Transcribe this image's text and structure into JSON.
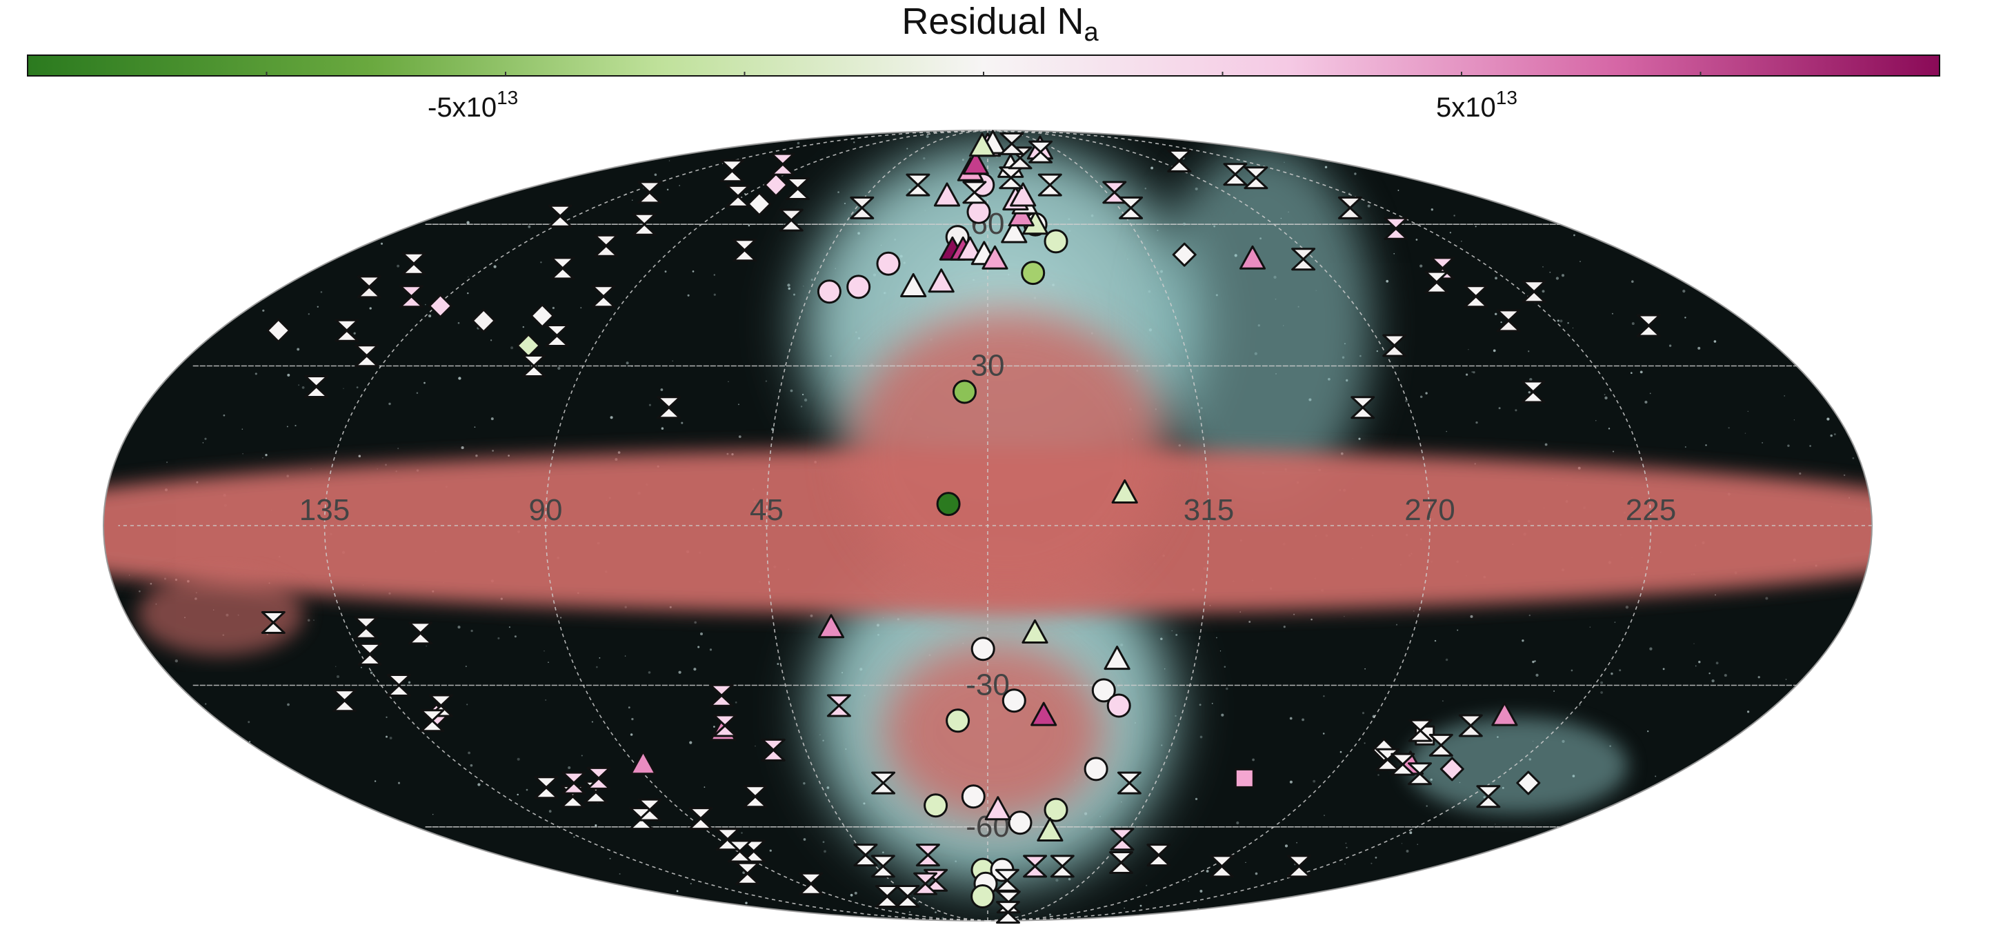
{
  "colorbar": {
    "title": "Residual N",
    "title_sub": "a",
    "tick_neg_base": "-5x10",
    "tick_neg_exp": "13",
    "tick_pos_base": "5x10",
    "tick_pos_exp": "13",
    "colors": {
      "green_dark": "#2b7a1f",
      "green_mid": "#8cc256",
      "green_light": "#dcefc4",
      "neutral": "#f7f5f5",
      "pink_light": "#f5c9e4",
      "pink_mid": "#d667a6",
      "magenta_dark": "#8a0a57"
    }
  },
  "map": {
    "projection": "Mollweide",
    "lon_labels": [
      "135",
      "90",
      "45",
      "315",
      "270",
      "225"
    ],
    "lat_labels": [
      "60",
      "30",
      "-30",
      "-60"
    ],
    "background_color": "#0b1212",
    "disk_color": "#c96a66",
    "bubble_color": "#a9d6d6"
  },
  "markers": [
    {
      "s": "circle",
      "lon": 8,
      "lat": 4,
      "c": "#2b7a1f"
    },
    {
      "s": "circle",
      "lon": 5,
      "lat": 25,
      "c": "#8cc256"
    },
    {
      "s": "circle",
      "lon": -12,
      "lat": 49,
      "c": "#a5d06d"
    },
    {
      "s": "circle",
      "lon": -20,
      "lat": 56,
      "c": "#dcefc4"
    },
    {
      "s": "circle",
      "lon": -15,
      "lat": 60,
      "c": "#f7f5f5"
    },
    {
      "s": "circle",
      "lon": 3,
      "lat": 63,
      "c": "#f9d6ec"
    },
    {
      "s": "circle",
      "lon": 2,
      "lat": 70,
      "c": "#f9d6ec"
    },
    {
      "s": "circle",
      "lon": 27,
      "lat": 51,
      "c": "#f9d6ec"
    },
    {
      "s": "circle",
      "lon": 40,
      "lat": 45,
      "c": "#f9d6ec"
    },
    {
      "s": "circle",
      "lon": 33,
      "lat": 46,
      "c": "#f9d6ec"
    },
    {
      "s": "circle",
      "lon": 9,
      "lat": 57,
      "c": "#f4f1f1"
    },
    {
      "s": "circle",
      "lon": 1,
      "lat": -23,
      "c": "#f7f5f5"
    },
    {
      "s": "circle",
      "lon": -6,
      "lat": -33,
      "c": "#f7f5f5"
    },
    {
      "s": "circle",
      "lon": -26,
      "lat": -31,
      "c": "#f7f5f5"
    },
    {
      "s": "circle",
      "lon": -30,
      "lat": -34,
      "c": "#f9d6ec"
    },
    {
      "s": "circle",
      "lon": 7,
      "lat": -37,
      "c": "#dcefc4"
    },
    {
      "s": "circle",
      "lon": -28,
      "lat": -47,
      "c": "#f7f5f5"
    },
    {
      "s": "circle",
      "lon": 4,
      "lat": -53,
      "c": "#f7f5f5"
    },
    {
      "s": "circle",
      "lon": 15,
      "lat": -55,
      "c": "#dcefc4"
    },
    {
      "s": "circle",
      "lon": -20,
      "lat": -56,
      "c": "#dcefc4"
    },
    {
      "s": "circle",
      "lon": -10,
      "lat": -59,
      "c": "#f7f5f5"
    },
    {
      "s": "circle",
      "lon": 2,
      "lat": -71,
      "c": "#dcefc4"
    },
    {
      "s": "circle",
      "lon": -6,
      "lat": -71,
      "c": "#f7f5f5"
    },
    {
      "s": "circle",
      "lon": 1,
      "lat": -75,
      "c": "#f7f5f5"
    },
    {
      "s": "circle",
      "lon": 3,
      "lat": -79,
      "c": "#dcefc4"
    },
    {
      "s": "triangle",
      "lon": -28,
      "lat": 6,
      "c": "#dcefc4"
    },
    {
      "s": "triangle",
      "lon": 19,
      "lat": 46,
      "c": "#f7f5f5"
    },
    {
      "s": "triangle",
      "lon": 12,
      "lat": 47,
      "c": "#f9d6ec"
    },
    {
      "s": "triangle",
      "lon": 10,
      "lat": 54,
      "c": "#8a0a57"
    },
    {
      "s": "triangle",
      "lon": 7,
      "lat": 54,
      "c": "#c43d8b"
    },
    {
      "s": "triangle",
      "lon": 5,
      "lat": 54,
      "c": "#f9d6ec"
    },
    {
      "s": "triangle",
      "lon": 1,
      "lat": 53,
      "c": "#f7f5f5"
    },
    {
      "s": "triangle",
      "lon": -2,
      "lat": 52,
      "c": "#f4a6d1"
    },
    {
      "s": "triangle",
      "lon": -8,
      "lat": 58,
      "c": "#f7f5f5"
    },
    {
      "s": "triangle",
      "lon": -15,
      "lat": 60,
      "c": "#dcefc4"
    },
    {
      "s": "triangle",
      "lon": -11,
      "lat": 62,
      "c": "#e98cc0"
    },
    {
      "s": "triangle",
      "lon": -13,
      "lat": 65,
      "c": "#f7f5f5"
    },
    {
      "s": "triangle",
      "lon": -10,
      "lat": 66,
      "c": "#f9d6ec"
    },
    {
      "s": "triangle",
      "lon": 8,
      "lat": 74,
      "c": "#f4a6d1"
    },
    {
      "s": "triangle",
      "lon": 6,
      "lat": 76,
      "c": "#c43d8b"
    },
    {
      "s": "triangle",
      "lon": 15,
      "lat": 67,
      "c": "#f9d6ec"
    },
    {
      "s": "triangle",
      "lon": -11,
      "lat": 75,
      "c": "#f7f5f5"
    },
    {
      "s": "triangle",
      "lon": 0,
      "lat": 82,
      "c": "#f9d6ec"
    },
    {
      "s": "triangle",
      "lon": -4,
      "lat": 83,
      "c": "#f7f5f5"
    },
    {
      "s": "triangle",
      "lon": 4,
      "lat": 82,
      "c": "#dcefc4"
    },
    {
      "s": "triangle",
      "lon": -35,
      "lat": 81,
      "c": "#f9d6ec"
    },
    {
      "s": "triangle",
      "lon": -73,
      "lat": 52,
      "c": "#e98cc0"
    },
    {
      "s": "triangle",
      "lon": -13,
      "lat": 67,
      "c": "#f9d6ec"
    },
    {
      "s": "triangle",
      "lon": 33,
      "lat": -19,
      "c": "#e98cc0"
    },
    {
      "s": "triangle",
      "lon": -10,
      "lat": -20,
      "c": "#dcefc4"
    },
    {
      "s": "triangle",
      "lon": -28,
      "lat": -25,
      "c": "#f7f5f5"
    },
    {
      "s": "triangle",
      "lon": -13,
      "lat": -36,
      "c": "#c43d8b"
    },
    {
      "s": "triangle",
      "lon": -3,
      "lat": -56,
      "c": "#f9d6ec"
    },
    {
      "s": "triangle",
      "lon": -20,
      "lat": -61,
      "c": "#dcefc4"
    },
    {
      "s": "triangle",
      "lon": 88,
      "lat": -46,
      "c": "#e98cc0"
    },
    {
      "s": "triangle",
      "lon": 63,
      "lat": -39,
      "c": "#e98cc0"
    },
    {
      "s": "triangle",
      "lon": -108,
      "lat": -46,
      "c": "#e98cc0"
    },
    {
      "s": "triangle",
      "lon": -120,
      "lat": -36,
      "c": "#e98cc0"
    },
    {
      "s": "diamond",
      "lon": 134,
      "lat": 42,
      "c": "#f9d6ec"
    },
    {
      "s": "diamond",
      "lon": 107,
      "lat": 40,
      "c": "#f7f5f5"
    },
    {
      "s": "diamond",
      "lon": 120,
      "lat": 39,
      "c": "#f4f1f1"
    },
    {
      "s": "diamond",
      "lon": 166,
      "lat": 37,
      "c": "#f7f5f5"
    },
    {
      "s": "diamond",
      "lon": 105,
      "lat": 34,
      "c": "#dcefc4"
    },
    {
      "s": "diamond",
      "lon": 85,
      "lat": 70,
      "c": "#f9d6ec"
    },
    {
      "s": "diamond",
      "lon": 80,
      "lat": 65,
      "c": "#f7f5f5"
    },
    {
      "s": "diamond",
      "lon": -55,
      "lat": 53,
      "c": "#f7f5f5"
    },
    {
      "s": "diamond",
      "lon": 128,
      "lat": -36,
      "c": "#f9d6ec"
    },
    {
      "s": "diamond",
      "lon": -98,
      "lat": -43,
      "c": "#f7f5f5"
    },
    {
      "s": "diamond",
      "lon": -120,
      "lat": -47,
      "c": "#f9d6ec"
    },
    {
      "s": "diamond",
      "lon": -145,
      "lat": -50,
      "c": "#f7f5f5"
    },
    {
      "s": "square",
      "lon": -68,
      "lat": -49,
      "c": "#f4a6d1"
    },
    {
      "s": "square",
      "lon": -105,
      "lat": -40,
      "c": "#f7f5f5"
    },
    {
      "s": "hourglass",
      "lon": 140,
      "lat": 62,
      "c": "#f7f5f5"
    },
    {
      "s": "hourglass",
      "lon": 128,
      "lat": 68,
      "c": "#f4f1f1"
    },
    {
      "s": "hourglass",
      "lon": 118,
      "lat": 74,
      "c": "#f7f5f5"
    },
    {
      "s": "hourglass",
      "lon": 103,
      "lat": 76,
      "c": "#f9d6ec"
    },
    {
      "s": "hourglass",
      "lon": 92,
      "lat": 67,
      "c": "#f4f1f1"
    },
    {
      "s": "hourglass",
      "lon": 108,
      "lat": 60,
      "c": "#f7f5f5"
    },
    {
      "s": "hourglass",
      "lon": 110,
      "lat": 55,
      "c": "#f4f1f1"
    },
    {
      "s": "hourglass",
      "lon": 114,
      "lat": 50,
      "c": "#f7f5f5"
    },
    {
      "s": "hourglass",
      "lon": 156,
      "lat": 51,
      "c": "#f7f5f5"
    },
    {
      "s": "hourglass",
      "lon": 158,
      "lat": 46,
      "c": "#f4f1f1"
    },
    {
      "s": "hourglass",
      "lon": 144,
      "lat": 44,
      "c": "#f9d6ec"
    },
    {
      "s": "hourglass",
      "lon": 150,
      "lat": 37,
      "c": "#f7f5f5"
    },
    {
      "s": "hourglass",
      "lon": 140,
      "lat": 32,
      "c": "#f7f5f5"
    },
    {
      "s": "hourglass",
      "lon": 100,
      "lat": 36,
      "c": "#f7f5f5"
    },
    {
      "s": "hourglass",
      "lon": 101,
      "lat": 30,
      "c": "#f7f5f5"
    },
    {
      "s": "hourglass",
      "lon": 69,
      "lat": 54,
      "c": "#f7f5f5"
    },
    {
      "s": "hourglass",
      "lon": 63,
      "lat": 61,
      "c": "#f4f1f1"
    },
    {
      "s": "hourglass",
      "lon": 74,
      "lat": 69,
      "c": "#f7f5f5"
    },
    {
      "s": "hourglass",
      "lon": 96,
      "lat": 44,
      "c": "#f7f5f5"
    },
    {
      "s": "hourglass",
      "lon": 68,
      "lat": 22,
      "c": "#f7f5f5"
    },
    {
      "s": "hourglass",
      "lon": 146,
      "lat": 26,
      "c": "#f7f5f5"
    },
    {
      "s": "hourglass",
      "lon": -10,
      "lat": 72,
      "c": "#f7f5f5"
    },
    {
      "s": "hourglass",
      "lon": -25,
      "lat": 70,
      "c": "#f7f5f5"
    },
    {
      "s": "hourglass",
      "lon": -48,
      "lat": 68,
      "c": "#f9d6ec"
    },
    {
      "s": "hourglass",
      "lon": -49,
      "lat": 64,
      "c": "#f7f5f5"
    },
    {
      "s": "hourglass",
      "lon": -33,
      "lat": 80,
      "c": "#f7f5f5"
    },
    {
      "s": "hourglass",
      "lon": -18,
      "lat": 78,
      "c": "#f4f1f1"
    },
    {
      "s": "hourglass",
      "lon": -19,
      "lat": 83,
      "c": "#f4f1f1"
    },
    {
      "s": "hourglass",
      "lon": 28,
      "lat": 70,
      "c": "#f7f5f5"
    },
    {
      "s": "hourglass",
      "lon": 43,
      "lat": 64,
      "c": "#f4f1f1"
    },
    {
      "s": "hourglass",
      "lon": 5,
      "lat": 68,
      "c": "#f7f5f5"
    },
    {
      "s": "hourglass",
      "lon": -101,
      "lat": 77,
      "c": "#f7f5f5"
    },
    {
      "s": "hourglass",
      "lon": -115,
      "lat": 72,
      "c": "#f7f5f5"
    },
    {
      "s": "hourglass",
      "lon": -110,
      "lat": 73,
      "c": "#f7f5f5"
    },
    {
      "s": "hourglass",
      "lon": -124,
      "lat": 64,
      "c": "#f4f1f1"
    },
    {
      "s": "hourglass",
      "lon": -126,
      "lat": 59,
      "c": "#f9d6ec"
    },
    {
      "s": "hourglass",
      "lon": -122,
      "lat": 50,
      "c": "#f9d6ec"
    },
    {
      "s": "hourglass",
      "lon": -116,
      "lat": 47,
      "c": "#f7f5f5"
    },
    {
      "s": "hourglass",
      "lon": -122,
      "lat": 44,
      "c": "#f7f5f5"
    },
    {
      "s": "hourglass",
      "lon": -124,
      "lat": 39,
      "c": "#f4f1f1"
    },
    {
      "s": "hourglass",
      "lon": -138,
      "lat": 45,
      "c": "#f4f1f1"
    },
    {
      "s": "hourglass",
      "lon": -156,
      "lat": 38,
      "c": "#f7f5f5"
    },
    {
      "s": "hourglass",
      "lon": -87,
      "lat": 52,
      "c": "#f4f1f1"
    },
    {
      "s": "hourglass",
      "lon": -93,
      "lat": 34,
      "c": "#f4f1f1"
    },
    {
      "s": "hourglass",
      "lon": -80,
      "lat": 22,
      "c": "#f7f5f5"
    },
    {
      "s": "hourglass",
      "lon": -118,
      "lat": 25,
      "c": "#f7f5f5"
    },
    {
      "s": "hourglass",
      "lon": 150,
      "lat": -18,
      "c": "#f7f5f5"
    },
    {
      "s": "hourglass",
      "lon": 131,
      "lat": -19,
      "c": "#f4f1f1"
    },
    {
      "s": "hourglass",
      "lon": 120,
      "lat": -20,
      "c": "#f7f5f5"
    },
    {
      "s": "hourglass",
      "lon": 133,
      "lat": -24,
      "c": "#f7f5f5"
    },
    {
      "s": "hourglass",
      "lon": 131,
      "lat": -30,
      "c": "#f7f5f5"
    },
    {
      "s": "hourglass",
      "lon": 125,
      "lat": -34,
      "c": "#f7f5f5"
    },
    {
      "s": "hourglass",
      "lon": 130,
      "lat": -37,
      "c": "#f7f5f5"
    },
    {
      "s": "hourglass",
      "lon": 146,
      "lat": -33,
      "c": "#f7f5f5"
    },
    {
      "s": "hourglass",
      "lon": 120,
      "lat": -51,
      "c": "#f7f5f5"
    },
    {
      "s": "hourglass",
      "lon": 116,
      "lat": -53,
      "c": "#f7f5f5"
    },
    {
      "s": "hourglass",
      "lon": 111,
      "lat": -50,
      "c": "#f9d6ec"
    },
    {
      "s": "hourglass",
      "lon": 108,
      "lat": -52,
      "c": "#f7f5f5"
    },
    {
      "s": "hourglass",
      "lon": 103,
      "lat": -49,
      "c": "#f9d6ec"
    },
    {
      "s": "hourglass",
      "lon": 105,
      "lat": -58,
      "c": "#f7f5f5"
    },
    {
      "s": "hourglass",
      "lon": 99,
      "lat": -56,
      "c": "#f7f5f5"
    },
    {
      "s": "hourglass",
      "lon": 87,
      "lat": -58,
      "c": "#f7f5f5"
    },
    {
      "s": "hourglass",
      "lon": 87,
      "lat": -63,
      "c": "#f7f5f5"
    },
    {
      "s": "hourglass",
      "lon": 84,
      "lat": -66,
      "c": "#f7f5f5"
    },
    {
      "s": "hourglass",
      "lon": 89,
      "lat": -66,
      "c": "#f7f5f5"
    },
    {
      "s": "hourglass",
      "lon": 103,
      "lat": -72,
      "c": "#f7f5f5"
    },
    {
      "s": "hourglass",
      "lon": 85,
      "lat": -75,
      "c": "#f7f5f5"
    },
    {
      "s": "hourglass",
      "lon": 65,
      "lat": -53,
      "c": "#f7f5f5"
    },
    {
      "s": "hourglass",
      "lon": 53,
      "lat": -43,
      "c": "#f9d6ec"
    },
    {
      "s": "hourglass",
      "lon": 62,
      "lat": -38,
      "c": "#f9d6ec"
    },
    {
      "s": "hourglass",
      "lon": 60,
      "lat": -32,
      "c": "#f9d6ec"
    },
    {
      "s": "hourglass",
      "lon": 45,
      "lat": -67,
      "c": "#f7f5f5"
    },
    {
      "s": "hourglass",
      "lon": 42,
      "lat": -70,
      "c": "#f7f5f5"
    },
    {
      "s": "hourglass",
      "lon": 47,
      "lat": -79,
      "c": "#f7f5f5"
    },
    {
      "s": "hourglass",
      "lon": 59,
      "lat": -79,
      "c": "#f7f5f5"
    },
    {
      "s": "hourglass",
      "lon": 22,
      "lat": -67,
      "c": "#f9d6ec"
    },
    {
      "s": "hourglass",
      "lon": 24,
      "lat": -74,
      "c": "#f9d6ec"
    },
    {
      "s": "hourglass",
      "lon": 30,
      "lat": -75,
      "c": "#f9d6ec"
    },
    {
      "s": "hourglass",
      "lon": 28,
      "lat": -50,
      "c": "#f7f5f5"
    },
    {
      "s": "hourglass",
      "lon": 34,
      "lat": -34,
      "c": "#f9d6ec"
    },
    {
      "s": "hourglass",
      "lon": -9,
      "lat": -74,
      "c": "#f7f5f5"
    },
    {
      "s": "hourglass",
      "lon": -14,
      "lat": -81,
      "c": "#f7f5f5"
    },
    {
      "s": "hourglass",
      "lon": -20,
      "lat": -85,
      "c": "#f7f5f5"
    },
    {
      "s": "hourglass",
      "lon": -19,
      "lat": -70,
      "c": "#f9d6ec"
    },
    {
      "s": "hourglass",
      "lon": -30,
      "lat": -70,
      "c": "#f7f5f5"
    },
    {
      "s": "hourglass",
      "lon": -38,
      "lat": -50,
      "c": "#f7f5f5"
    },
    {
      "s": "hourglass",
      "lon": -45,
      "lat": -63,
      "c": "#f9d6ec"
    },
    {
      "s": "hourglass",
      "lon": -52,
      "lat": -69,
      "c": "#f7f5f5"
    },
    {
      "s": "hourglass",
      "lon": -63,
      "lat": -67,
      "c": "#f7f5f5"
    },
    {
      "s": "hourglass",
      "lon": -94,
      "lat": -70,
      "c": "#f7f5f5"
    },
    {
      "s": "hourglass",
      "lon": -125,
      "lat": -70,
      "c": "#f7f5f5"
    },
    {
      "s": "hourglass",
      "lon": -103,
      "lat": -39,
      "c": "#f7f5f5"
    },
    {
      "s": "hourglass",
      "lon": -101,
      "lat": -45,
      "c": "#f7f5f5"
    },
    {
      "s": "hourglass",
      "lon": -106,
      "lat": -46,
      "c": "#f7f5f5"
    },
    {
      "s": "hourglass",
      "lon": -111,
      "lat": -42,
      "c": "#f7f5f5"
    },
    {
      "s": "hourglass",
      "lon": -113,
      "lat": -48,
      "c": "#f7f5f5"
    },
    {
      "s": "hourglass",
      "lon": -140,
      "lat": -53,
      "c": "#f7f5f5"
    },
    {
      "s": "hourglass",
      "lon": -114,
      "lat": -38,
      "c": "#f4f1f1"
    }
  ]
}
